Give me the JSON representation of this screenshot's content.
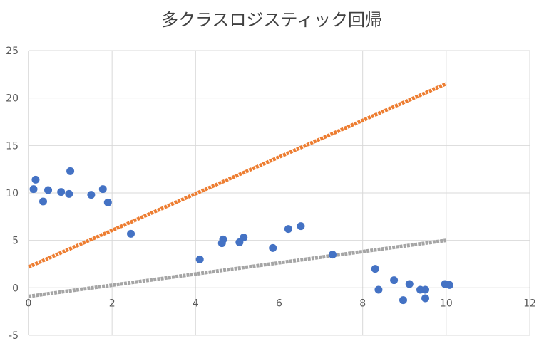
{
  "chart_data": {
    "type": "scatter",
    "title": "多クラスロジスティック回帰",
    "xlim": [
      0,
      12
    ],
    "ylim": [
      -5,
      25
    ],
    "x_ticks": [
      0,
      2,
      4,
      6,
      8,
      10,
      12
    ],
    "y_ticks": [
      -5,
      0,
      5,
      10,
      15,
      20,
      25
    ],
    "grid": true,
    "legend": "none",
    "points": [
      {
        "x": 0.12,
        "y": 10.4
      },
      {
        "x": 0.17,
        "y": 11.4
      },
      {
        "x": 0.35,
        "y": 9.1
      },
      {
        "x": 0.47,
        "y": 10.3
      },
      {
        "x": 0.78,
        "y": 10.1
      },
      {
        "x": 0.97,
        "y": 9.9
      },
      {
        "x": 1.0,
        "y": 12.3
      },
      {
        "x": 1.5,
        "y": 9.8
      },
      {
        "x": 1.78,
        "y": 10.4
      },
      {
        "x": 1.9,
        "y": 9.0
      },
      {
        "x": 2.45,
        "y": 5.7
      },
      {
        "x": 4.1,
        "y": 3.0
      },
      {
        "x": 4.63,
        "y": 4.7
      },
      {
        "x": 4.66,
        "y": 5.1
      },
      {
        "x": 5.05,
        "y": 4.8
      },
      {
        "x": 5.15,
        "y": 5.3
      },
      {
        "x": 5.85,
        "y": 4.2
      },
      {
        "x": 6.22,
        "y": 6.2
      },
      {
        "x": 6.52,
        "y": 6.5
      },
      {
        "x": 7.28,
        "y": 3.5
      },
      {
        "x": 8.3,
        "y": 2.0
      },
      {
        "x": 8.38,
        "y": -0.2
      },
      {
        "x": 8.75,
        "y": 0.8
      },
      {
        "x": 8.97,
        "y": -1.3
      },
      {
        "x": 9.12,
        "y": 0.4
      },
      {
        "x": 9.38,
        "y": -0.2
      },
      {
        "x": 9.5,
        "y": -0.2
      },
      {
        "x": 9.5,
        "y": -1.1
      },
      {
        "x": 9.97,
        "y": 0.4
      },
      {
        "x": 10.08,
        "y": 0.3
      }
    ],
    "lines": [
      {
        "x": [
          0,
          10
        ],
        "y": [
          2.2,
          21.5
        ],
        "color": "#ED7D31"
      },
      {
        "x": [
          0,
          10
        ],
        "y": [
          -0.9,
          5.0
        ],
        "color": "#A5A5A5"
      }
    ],
    "point_color": "#4472C4"
  }
}
